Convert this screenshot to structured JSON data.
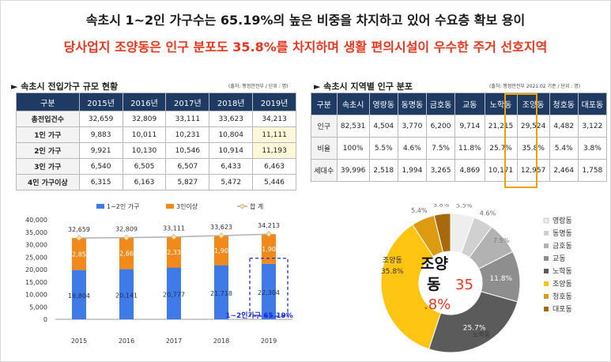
{
  "headline": {
    "line1": "속초시 1~2인 가구수는 65.19%의 높은 비중을 차지하고 있어 수요층 확보 용이",
    "line2": "당사업지 조양동은 인구 분포도 35.8%를 차지하며 생활 편의시설이 우수한 주거 선호지역"
  },
  "left_table": {
    "title": "► 속초시 전입가구 규모 현황",
    "source": "(출처: 행정안전부 / 단위 : 명)",
    "headers": [
      "구분",
      "2015년",
      "2016년",
      "2017년",
      "2018년",
      "2019년"
    ],
    "rows": [
      {
        "label": "총전입건수",
        "cells": [
          "32,659",
          "32,809",
          "33,111",
          "33,623",
          "34,213"
        ]
      },
      {
        "label": "1인 가구",
        "cells": [
          "9,883",
          "10,011",
          "10,231",
          "10,804",
          "11,111"
        ]
      },
      {
        "label": "2인 가구",
        "cells": [
          "9,921",
          "10,130",
          "10,546",
          "10,914",
          "11,193"
        ]
      },
      {
        "label": "3인 가구",
        "cells": [
          "6,540",
          "6,505",
          "6,507",
          "6,433",
          "6,463"
        ]
      },
      {
        "label": "4인 가구이상",
        "cells": [
          "6,315",
          "6,163",
          "5,827",
          "5,472",
          "5,446"
        ]
      }
    ]
  },
  "right_table": {
    "title": "► 속초시 지역별 인구 분포",
    "source": "(출처: 행정안전부   2021.02 기준 / 단위 : 명)",
    "headers": [
      "구분",
      "속초시",
      "영랑동",
      "동명동",
      "금호동",
      "교동",
      "노학동",
      "조양동",
      "청호동",
      "대포동"
    ],
    "rows": [
      {
        "label": "인구",
        "cells": [
          "82,531",
          "4,504",
          "3,770",
          "6,200",
          "9,714",
          "21,215",
          "29,524",
          "4,482",
          "3,122"
        ]
      },
      {
        "label": "비율",
        "cells": [
          "100%",
          "5.5%",
          "4.6%",
          "7.5%",
          "11.8%",
          "25.7%",
          "35.8%",
          "5.4%",
          "3.8%"
        ]
      },
      {
        "label": "세대수",
        "cells": [
          "39,996",
          "2,518",
          "1,994",
          "3,265",
          "4,869",
          "10,171",
          "12,957",
          "2,464",
          "1,758"
        ]
      }
    ]
  },
  "chart_data": [
    {
      "type": "bar",
      "stacked": true,
      "categories": [
        "2015",
        "2016",
        "2017",
        "2018",
        "2019"
      ],
      "series": [
        {
          "name": "1~2인 가구",
          "values": [
            19804,
            20141,
            20777,
            21718,
            22304
          ],
          "color": "#3e7be8"
        },
        {
          "name": "3인이상",
          "values": [
            12855,
            12668,
            12334,
            11905,
            11909
          ],
          "color": "#f28a1b"
        }
      ],
      "total": {
        "name": "합   계",
        "values": [
          32659,
          32809,
          33111,
          33623,
          34213
        ],
        "color": "#b0b0b0"
      },
      "total_labels": [
        "32,659",
        "32,809",
        "33,111",
        "33,623",
        "34,213"
      ],
      "bottom_labels": [
        "19,804",
        "20,141",
        "20,777",
        "21,718",
        "22,304"
      ],
      "top_labels": [
        "12,855",
        "12,668",
        "12,334",
        "11,905",
        "11,909"
      ],
      "ylim": [
        0,
        40000
      ],
      "yticks": [
        "40,000",
        "35,000",
        "30,000",
        "25,000",
        "20,000",
        "15,000",
        "10,000",
        "5,000",
        "0"
      ],
      "annotation": "1~2인가구 65.19%",
      "legend_position": "top"
    },
    {
      "type": "pie",
      "donut": true,
      "categories": [
        "영랑동",
        "동명동",
        "금호동",
        "교동",
        "노학동",
        "조양동",
        "청호동",
        "대포동"
      ],
      "values": [
        5.5,
        4.6,
        7.5,
        11.8,
        25.7,
        35.8,
        5.4,
        3.8
      ],
      "colors": [
        "#eeeeee",
        "#d0d0d0",
        "#b2b2b2",
        "#8e8e8e",
        "#5b5b5b",
        "#ffc512",
        "#dd9b12",
        "#a8690c"
      ],
      "slice_labels": [
        "5.5%",
        "4.6%",
        "7.5%",
        "11.8%",
        "25.7%",
        "35.8%",
        "5.4%",
        "3.8%"
      ],
      "center_text": {
        "name": "조양",
        "name2": "동",
        "pct1": "35",
        "pct2": ".8%"
      },
      "outer_labels": {
        "joyang": "조양동",
        "noh": "노학동"
      },
      "legend_position": "right"
    }
  ]
}
